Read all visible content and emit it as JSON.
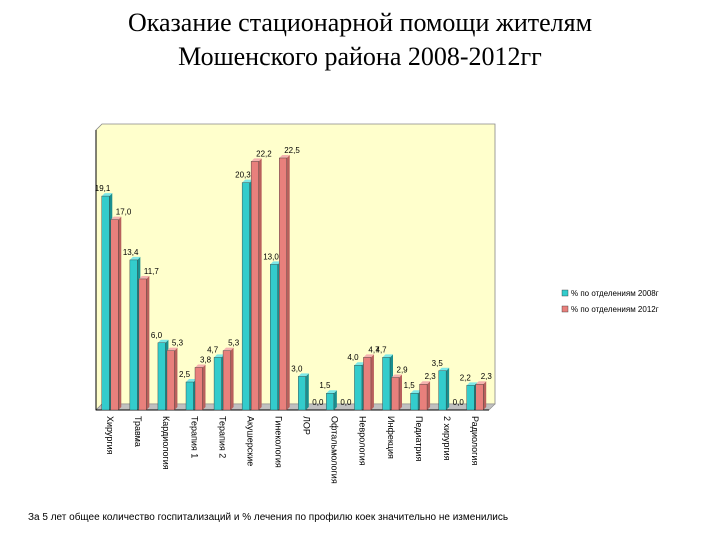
{
  "title_line1": "Оказание стационарной помощи жителям",
  "title_line2": "Мошенского района 2008-2012гг",
  "footer": "За 5 лет общее количество госпитализаций и % лечения по профилю коек значительно не изменились",
  "chart_data": {
    "type": "bar",
    "title": "Оказание стационарной помощи жителям Мошенского района 2008-2012гг",
    "categories": [
      "Хирургия",
      "Травма",
      "Кардиология",
      "Терапия 1",
      "Терапия 2",
      "Акушерские",
      "Гинекология",
      "ЛОР",
      "Офтальмология",
      "Неврология",
      "Инфекция",
      "Педиатрия",
      "2 хирургия",
      "Радиология"
    ],
    "series": [
      {
        "name": "% по отделениям 2008г",
        "color": "#33cccc",
        "values": [
          19.1,
          13.4,
          6.0,
          2.5,
          4.7,
          20.3,
          13.0,
          3.0,
          1.5,
          4.0,
          4.7,
          1.5,
          3.5,
          2.2
        ]
      },
      {
        "name": "% по отделениям 2012г",
        "color": "#e8807c",
        "values": [
          17.0,
          11.7,
          5.3,
          3.8,
          5.3,
          22.2,
          22.5,
          0.0,
          0.0,
          4.7,
          2.9,
          2.3,
          0.0,
          2.3
        ]
      }
    ],
    "data_labels": [
      [
        "19,1",
        "13,4",
        "6,0",
        "2,5",
        "4,7",
        "20,3",
        "13,0",
        "3,0",
        "1,5",
        "4,0",
        "4,7",
        "1,5",
        "3,5",
        "2,2"
      ],
      [
        "17,0",
        "11,7",
        "5,3",
        "3,8",
        "5,3",
        "22,2",
        "22,5",
        "0,0",
        "0,0",
        "4,7",
        "2,9",
        "2,3",
        "0,0",
        "2,3"
      ]
    ],
    "ylim": [
      0,
      25
    ],
    "grid": false,
    "legend_position": "right",
    "plot_background": "#ffffcc"
  }
}
